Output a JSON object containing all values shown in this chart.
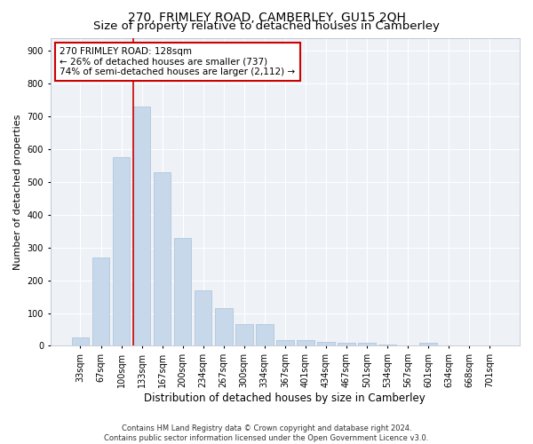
{
  "title_line1": "270, FRIMLEY ROAD, CAMBERLEY, GU15 2QH",
  "title_line2": "Size of property relative to detached houses in Camberley",
  "xlabel": "Distribution of detached houses by size in Camberley",
  "ylabel": "Number of detached properties",
  "categories": [
    "33sqm",
    "67sqm",
    "100sqm",
    "133sqm",
    "167sqm",
    "200sqm",
    "234sqm",
    "267sqm",
    "300sqm",
    "334sqm",
    "367sqm",
    "401sqm",
    "434sqm",
    "467sqm",
    "501sqm",
    "534sqm",
    "567sqm",
    "601sqm",
    "634sqm",
    "668sqm",
    "701sqm"
  ],
  "values": [
    25,
    270,
    575,
    730,
    530,
    328,
    170,
    115,
    65,
    65,
    18,
    18,
    12,
    10,
    8,
    5,
    0,
    10,
    0,
    0,
    0
  ],
  "bar_color": "#c8d8eb",
  "bar_edge_color": "#a8c0d8",
  "vline_color": "#cc0000",
  "annotation_text": "270 FRIMLEY ROAD: 128sqm\n← 26% of detached houses are smaller (737)\n74% of semi-detached houses are larger (2,112) →",
  "annotation_box_color": "#cc0000",
  "ylim": [
    0,
    940
  ],
  "yticks": [
    0,
    100,
    200,
    300,
    400,
    500,
    600,
    700,
    800,
    900
  ],
  "bg_color": "#eef2f7",
  "grid_color": "#ffffff",
  "footer_text": "Contains HM Land Registry data © Crown copyright and database right 2024.\nContains public sector information licensed under the Open Government Licence v3.0.",
  "title_fontsize": 10,
  "subtitle_fontsize": 9.5,
  "xlabel_fontsize": 8.5,
  "ylabel_fontsize": 8,
  "tick_fontsize": 7,
  "annotation_fontsize": 7.5,
  "footer_fontsize": 6
}
